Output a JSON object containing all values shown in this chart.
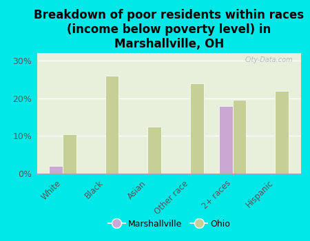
{
  "title": "Breakdown of poor residents within races\n(income below poverty level) in\nMarshallville, OH",
  "categories": [
    "White",
    "Black",
    "Asian",
    "Other race",
    "2+ races",
    "Hispanic"
  ],
  "marshallville": [
    2.0,
    0.0,
    0.0,
    0.0,
    18.0,
    0.0
  ],
  "ohio": [
    10.5,
    26.0,
    12.5,
    24.0,
    19.5,
    22.0
  ],
  "marshallville_color": "#c9a8d4",
  "ohio_color": "#c5cf96",
  "background_color": "#00e8e8",
  "plot_bg_top": "#e8f0dc",
  "plot_bg_bottom": "#d0e8c8",
  "title_fontsize": 12,
  "ylim": [
    0,
    32
  ],
  "yticks": [
    0,
    10,
    20,
    30
  ],
  "bar_width": 0.32,
  "watermark": "City-Data.com"
}
